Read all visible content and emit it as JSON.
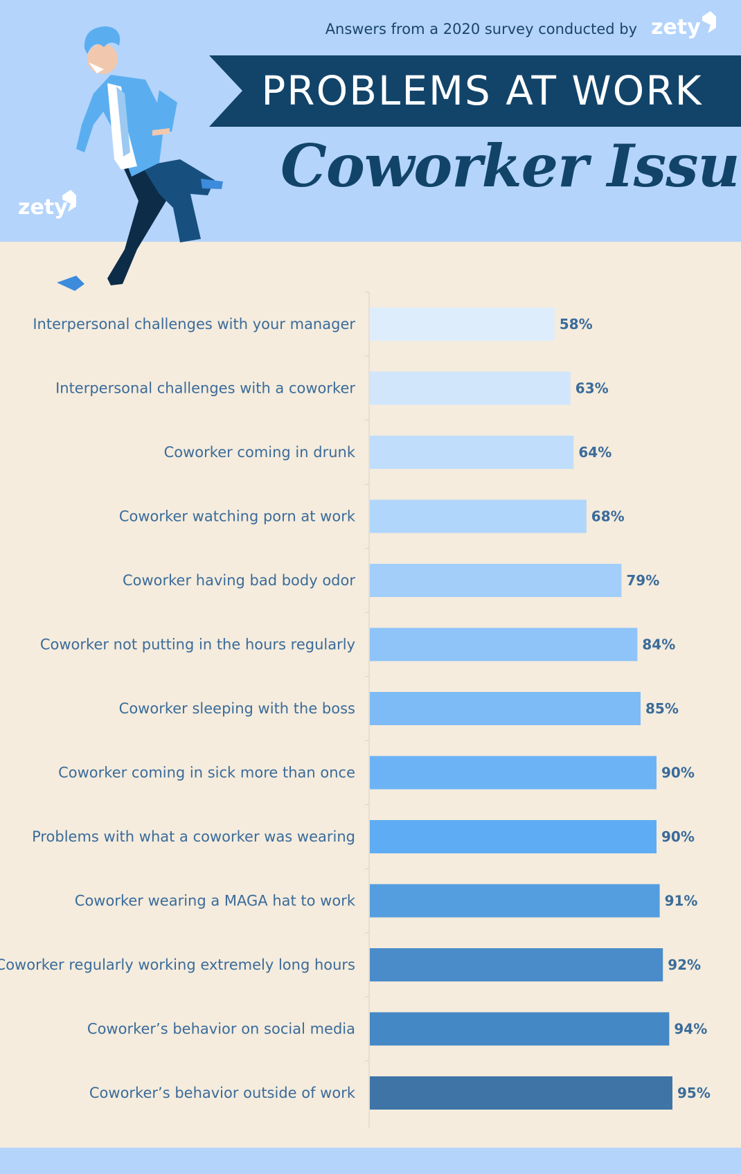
{
  "header": {
    "survey_note": "Answers from a 2020 survey conducted by",
    "brand": "zety",
    "title": "PROBLEMS AT WORK",
    "subtitle": "Coworker Issues"
  },
  "colors": {
    "header_bg": "#b4d4fb",
    "page_bg": "#f5ecdd",
    "banner": "#12446a",
    "label": "#3a6b9a"
  },
  "icons": {
    "logo": "zety-logo-icon",
    "illustration": "running-man-illustration"
  },
  "chart_data": {
    "type": "bar",
    "orientation": "horizontal",
    "categories": [
      "Interpersonal challenges with your manager",
      "Interpersonal challenges with a coworker",
      "Coworker coming in drunk",
      "Coworker watching porn at work",
      "Coworker having bad body odor",
      "Coworker not putting in the hours regularly",
      "Coworker sleeping with the boss",
      "Coworker coming in sick more than once",
      "Problems with what a coworker was wearing",
      "Coworker wearing a MAGA hat to work",
      "Coworker regularly working extremely long hours",
      "Coworker’s behavior on social media",
      "Coworker’s behavior outside of work"
    ],
    "values": [
      58,
      63,
      64,
      68,
      79,
      84,
      85,
      90,
      90,
      91,
      92,
      94,
      95
    ],
    "value_labels": [
      "58%",
      "63%",
      "64%",
      "68%",
      "79%",
      "84%",
      "85%",
      "90%",
      "90%",
      "91%",
      "92%",
      "94%",
      "95%"
    ],
    "bar_colors": [
      "#ddedfc",
      "#d1e6fb",
      "#c0defb",
      "#b1d6fb",
      "#a3cefa",
      "#8ec4f8",
      "#7dbbf6",
      "#6cb3f5",
      "#5eacf3",
      "#549ee0",
      "#4a8cca",
      "#4488c5",
      "#3e74a6"
    ],
    "xlim": [
      0,
      100
    ],
    "xlabel": "",
    "ylabel": "",
    "grid": false,
    "legend": "none"
  }
}
